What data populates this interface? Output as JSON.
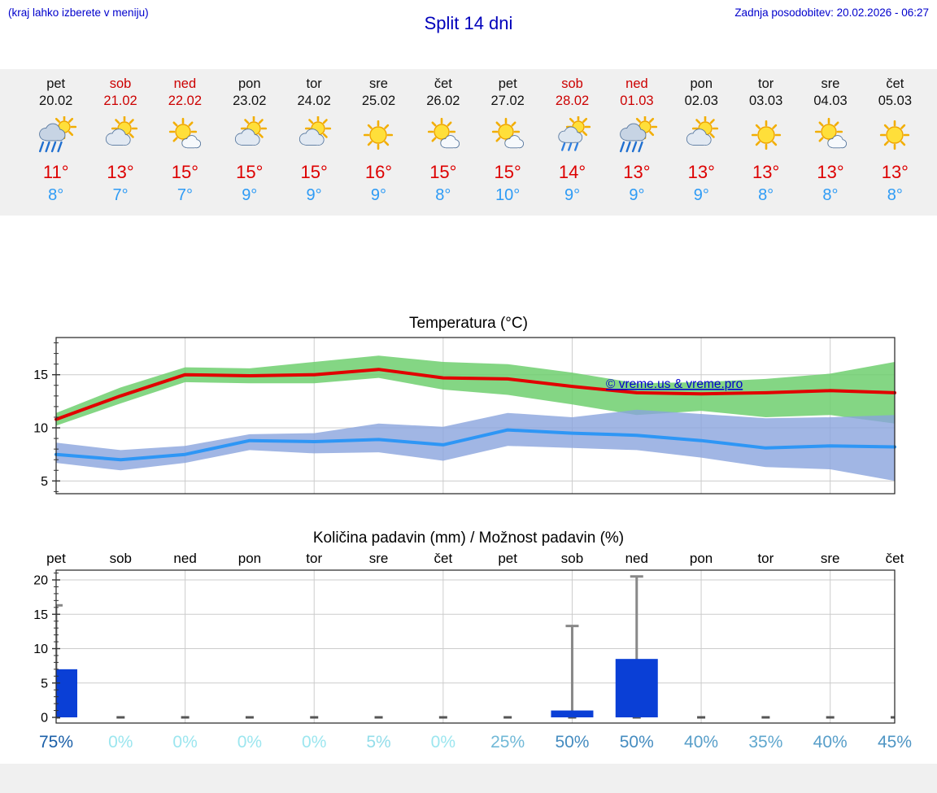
{
  "header": {
    "hint": "(kraj lahko izberete v meniju)",
    "title": "Split 14 dni",
    "updated": "Zadnja posodobitev: 20.02.2026 - 06:27"
  },
  "watermark": "© vreme.us & vreme.pro",
  "colors": {
    "accent_blue": "#0000cc",
    "title_blue": "#0000bb",
    "hi_red": "#dd0000",
    "weekend_red": "#cc0000",
    "low_blue": "#2e9bf5",
    "strip_bg": "#f0f0f0",
    "grid": "#cccccc",
    "axis": "#222222",
    "prob_low": "#9ce6ef",
    "prob_high": "#1a5fa8",
    "watermark_blue": "#0000cc"
  },
  "forecast": {
    "days": [
      {
        "day": "pet",
        "date": "20.02",
        "weekend": false,
        "icon": "rain",
        "high": "11°",
        "low": "8°"
      },
      {
        "day": "sob",
        "date": "21.02",
        "weekend": true,
        "icon": "partly",
        "high": "13°",
        "low": "7°"
      },
      {
        "day": "ned",
        "date": "22.02",
        "weekend": true,
        "icon": "mostly-sunny",
        "high": "15°",
        "low": "7°"
      },
      {
        "day": "pon",
        "date": "23.02",
        "weekend": false,
        "icon": "partly",
        "high": "15°",
        "low": "9°"
      },
      {
        "day": "tor",
        "date": "24.02",
        "weekend": false,
        "icon": "partly",
        "high": "15°",
        "low": "9°"
      },
      {
        "day": "sre",
        "date": "25.02",
        "weekend": false,
        "icon": "sunny",
        "high": "16°",
        "low": "9°"
      },
      {
        "day": "čet",
        "date": "26.02",
        "weekend": false,
        "icon": "mostly-sunny",
        "high": "15°",
        "low": "8°"
      },
      {
        "day": "pet",
        "date": "27.02",
        "weekend": false,
        "icon": "mostly-sunny",
        "high": "15°",
        "low": "10°"
      },
      {
        "day": "sob",
        "date": "28.02",
        "weekend": true,
        "icon": "light-rain",
        "high": "14°",
        "low": "9°"
      },
      {
        "day": "ned",
        "date": "01.03",
        "weekend": true,
        "icon": "rain",
        "high": "13°",
        "low": "9°"
      },
      {
        "day": "pon",
        "date": "02.03",
        "weekend": false,
        "icon": "partly",
        "high": "13°",
        "low": "9°"
      },
      {
        "day": "tor",
        "date": "03.03",
        "weekend": false,
        "icon": "sunny",
        "high": "13°",
        "low": "8°"
      },
      {
        "day": "sre",
        "date": "04.03",
        "weekend": false,
        "icon": "mostly-sunny",
        "high": "13°",
        "low": "8°"
      },
      {
        "day": "čet",
        "date": "05.03",
        "weekend": false,
        "icon": "sunny",
        "high": "13°",
        "low": "8°"
      }
    ]
  },
  "chart_data": [
    {
      "type": "line",
      "title": "Temperatura (°C)",
      "x": [
        "20.02",
        "21.02",
        "22.02",
        "23.02",
        "24.02",
        "25.02",
        "26.02",
        "27.02",
        "28.02",
        "01.03",
        "02.03",
        "03.03",
        "04.03",
        "05.03"
      ],
      "series": [
        {
          "name": "max-temp",
          "color": "#e10000",
          "values": [
            10.8,
            13.0,
            15.0,
            14.9,
            15.0,
            15.5,
            14.7,
            14.6,
            13.9,
            13.3,
            13.2,
            13.3,
            13.5,
            13.3
          ]
        },
        {
          "name": "min-temp",
          "color": "#2e96f5",
          "values": [
            7.5,
            7.0,
            7.5,
            8.8,
            8.7,
            8.9,
            8.4,
            9.8,
            9.5,
            9.3,
            8.8,
            8.1,
            8.3,
            8.2
          ]
        }
      ],
      "bands": [
        {
          "name": "max-range",
          "color": "#6fcf6f",
          "upper": [
            11.4,
            13.8,
            15.7,
            15.6,
            16.2,
            16.8,
            16.2,
            16.0,
            15.2,
            14.2,
            14.3,
            14.6,
            15.1,
            16.2
          ],
          "lower": [
            10.2,
            12.3,
            14.3,
            14.2,
            14.2,
            14.7,
            13.6,
            13.1,
            12.2,
            11.2,
            11.6,
            11.0,
            11.2,
            10.4
          ]
        },
        {
          "name": "min-range",
          "color": "#8aa4dd",
          "upper": [
            8.6,
            7.9,
            8.3,
            9.4,
            9.5,
            10.4,
            10.1,
            11.4,
            11.0,
            11.7,
            11.3,
            10.9,
            11.0,
            11.2
          ],
          "lower": [
            6.7,
            6.0,
            6.7,
            7.9,
            7.6,
            7.7,
            6.9,
            8.3,
            8.1,
            7.9,
            7.2,
            6.3,
            6.1,
            5.0
          ]
        }
      ],
      "yticks": [
        5,
        10,
        15
      ],
      "ylim": [
        3.8,
        18.5
      ],
      "grid": true,
      "legend": "none"
    },
    {
      "type": "bar",
      "title": "Količina padavin (mm) / Možnost padavin (%)",
      "categories": [
        "pet",
        "sob",
        "ned",
        "pon",
        "tor",
        "sre",
        "čet",
        "pet",
        "sob",
        "ned",
        "pon",
        "tor",
        "sre",
        "čet"
      ],
      "values_mm": [
        7.0,
        0,
        0,
        0,
        0,
        0,
        0,
        0,
        1.0,
        8.5,
        0,
        0,
        0,
        0
      ],
      "max_mm": [
        16.3,
        0,
        0,
        0,
        0,
        0,
        0,
        0,
        13.3,
        20.5,
        0,
        0,
        0,
        0
      ],
      "probability_pct": [
        75,
        0,
        0,
        0,
        0,
        5,
        0,
        25,
        50,
        50,
        40,
        35,
        40,
        45
      ],
      "probability_labels": [
        "75%",
        "0%",
        "0%",
        "0%",
        "0%",
        "5%",
        "0%",
        "25%",
        "50%",
        "50%",
        "40%",
        "35%",
        "40%",
        "45%"
      ],
      "yticks": [
        0,
        5,
        10,
        15,
        20
      ],
      "ylim": [
        0,
        21.4
      ],
      "bar_color": "#0a3fd6",
      "whisker_color": "#888888",
      "grid": true,
      "legend": "none"
    }
  ]
}
